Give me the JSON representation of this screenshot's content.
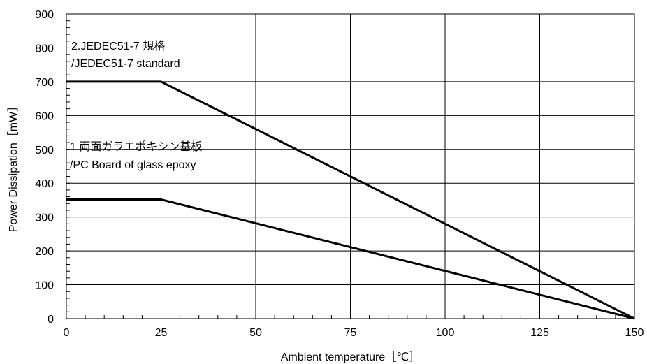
{
  "chart_data": {
    "type": "line",
    "title": "",
    "xlabel": "Ambient temperature［℃］",
    "ylabel": "Power Dissipation［mW］",
    "xlim": [
      0,
      150
    ],
    "ylim": [
      0,
      900
    ],
    "xticks": [
      0,
      25,
      50,
      75,
      100,
      125,
      150
    ],
    "yticks": [
      0,
      100,
      200,
      300,
      400,
      500,
      600,
      700,
      800,
      900
    ],
    "grid": true,
    "series": [
      {
        "x": [
          0,
          25,
          150
        ],
        "y": [
          700,
          700,
          0
        ]
      },
      {
        "x": [
          0,
          25,
          150
        ],
        "y": [
          352,
          352,
          0
        ]
      }
    ],
    "annotations": [
      {
        "line1": "2.JEDEC51-7 規格",
        "line2": "/JEDEC51-7 standard"
      },
      {
        "line1": "1 両面ガラエポキシン基板",
        "line2": "/PC Board of glass epoxy"
      }
    ]
  }
}
